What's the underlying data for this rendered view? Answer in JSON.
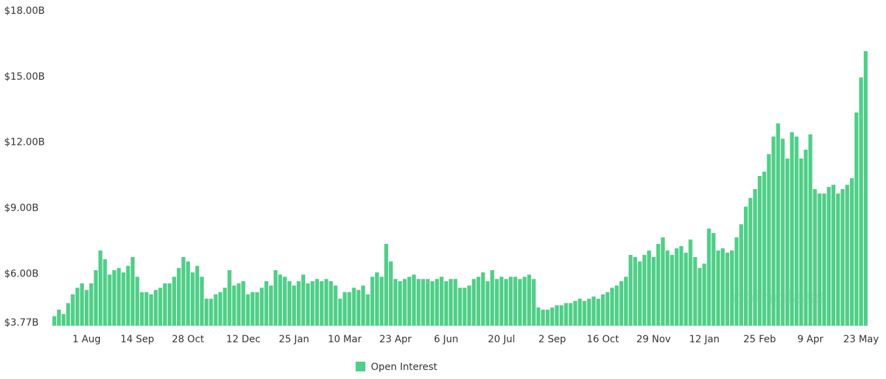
{
  "chart_data": {
    "type": "bar",
    "watermark": "coinglass",
    "series": [
      {
        "name": "Open Interest",
        "color": "#4fcf87",
        "values": [
          4.2,
          4.5,
          4.3,
          4.8,
          5.2,
          5.5,
          5.7,
          5.4,
          5.7,
          6.3,
          7.2,
          6.8,
          6.1,
          6.3,
          6.4,
          6.2,
          6.5,
          6.9,
          6.0,
          5.3,
          5.3,
          5.2,
          5.4,
          5.5,
          5.7,
          5.7,
          6.0,
          6.4,
          6.9,
          6.7,
          6.2,
          6.5,
          6.0,
          5.0,
          5.0,
          5.2,
          5.3,
          5.5,
          6.3,
          5.6,
          5.7,
          5.8,
          5.2,
          5.3,
          5.3,
          5.5,
          5.8,
          5.6,
          6.3,
          6.1,
          6.0,
          5.8,
          5.6,
          5.8,
          6.1,
          5.7,
          5.8,
          5.9,
          5.8,
          5.9,
          5.8,
          5.6,
          5.0,
          5.3,
          5.3,
          5.5,
          5.4,
          5.6,
          5.2,
          6.0,
          6.2,
          6.0,
          7.5,
          6.7,
          5.9,
          5.8,
          5.9,
          6.0,
          6.1,
          5.9,
          5.9,
          5.9,
          5.8,
          5.9,
          6.0,
          5.8,
          5.9,
          5.9,
          5.5,
          5.5,
          5.6,
          5.9,
          6.0,
          6.2,
          5.8,
          6.3,
          5.9,
          6.0,
          5.9,
          6.0,
          6.0,
          5.9,
          6.0,
          6.1,
          5.9,
          4.6,
          4.5,
          4.5,
          4.6,
          4.7,
          4.7,
          4.8,
          4.8,
          4.9,
          5.0,
          4.9,
          5.0,
          5.1,
          5.0,
          5.2,
          5.3,
          5.5,
          5.6,
          5.8,
          6.0,
          7.0,
          6.9,
          6.7,
          7.0,
          7.2,
          6.9,
          7.5,
          7.8,
          7.2,
          7.0,
          7.3,
          7.4,
          7.1,
          7.7,
          6.9,
          6.4,
          6.6,
          8.2,
          8.0,
          7.2,
          7.3,
          7.1,
          7.2,
          7.8,
          8.4,
          9.2,
          9.6,
          10.0,
          10.6,
          10.8,
          11.6,
          12.4,
          13.0,
          12.3,
          11.4,
          12.6,
          12.4,
          11.4,
          11.8,
          12.5,
          10.0,
          9.8,
          9.8,
          10.1,
          10.2,
          9.8,
          10.0,
          10.2,
          10.5,
          13.5,
          15.1,
          16.3
        ]
      }
    ],
    "categories": [
      null,
      null,
      null,
      null,
      null,
      null,
      null,
      "1 Aug",
      null,
      null,
      null,
      null,
      null,
      null,
      null,
      null,
      null,
      null,
      "14 Sep",
      null,
      null,
      null,
      null,
      null,
      null,
      null,
      null,
      null,
      null,
      "28 Oct",
      null,
      null,
      null,
      null,
      null,
      null,
      null,
      null,
      null,
      null,
      null,
      "12 Dec",
      null,
      null,
      null,
      null,
      null,
      null,
      null,
      null,
      null,
      null,
      "25 Jan",
      null,
      null,
      null,
      null,
      null,
      null,
      null,
      null,
      null,
      null,
      "10 Mar",
      null,
      null,
      null,
      null,
      null,
      null,
      null,
      null,
      null,
      null,
      "23 Apr",
      null,
      null,
      null,
      null,
      null,
      null,
      null,
      null,
      null,
      null,
      "6 Jun",
      null,
      null,
      null,
      null,
      null,
      null,
      null,
      null,
      null,
      null,
      null,
      "20 Jul",
      null,
      null,
      null,
      null,
      null,
      null,
      null,
      null,
      null,
      null,
      "2 Sep",
      null,
      null,
      null,
      null,
      null,
      null,
      null,
      null,
      null,
      null,
      "16 Oct",
      null,
      null,
      null,
      null,
      null,
      null,
      null,
      null,
      null,
      null,
      "29 Nov",
      null,
      null,
      null,
      null,
      null,
      null,
      null,
      null,
      null,
      null,
      "12 Jan",
      null,
      null,
      null,
      null,
      null,
      null,
      null,
      null,
      null,
      null,
      null,
      "25 Feb",
      null,
      null,
      null,
      null,
      null,
      null,
      null,
      null,
      null,
      null,
      "9 Apr",
      null,
      null,
      null,
      null,
      null,
      null,
      null,
      null,
      null,
      null,
      "23 May",
      null
    ],
    "ylim": [
      3.77,
      18
    ],
    "yticks": [
      {
        "value": 3.77,
        "label": "$3.77B"
      },
      {
        "value": 6,
        "label": "$6.00B"
      },
      {
        "value": 9,
        "label": "$9.00B"
      },
      {
        "value": 12,
        "label": "$12.00B"
      },
      {
        "value": 15,
        "label": "$15.00B"
      },
      {
        "value": 18,
        "label": "$18.00B"
      }
    ],
    "grid": false
  }
}
